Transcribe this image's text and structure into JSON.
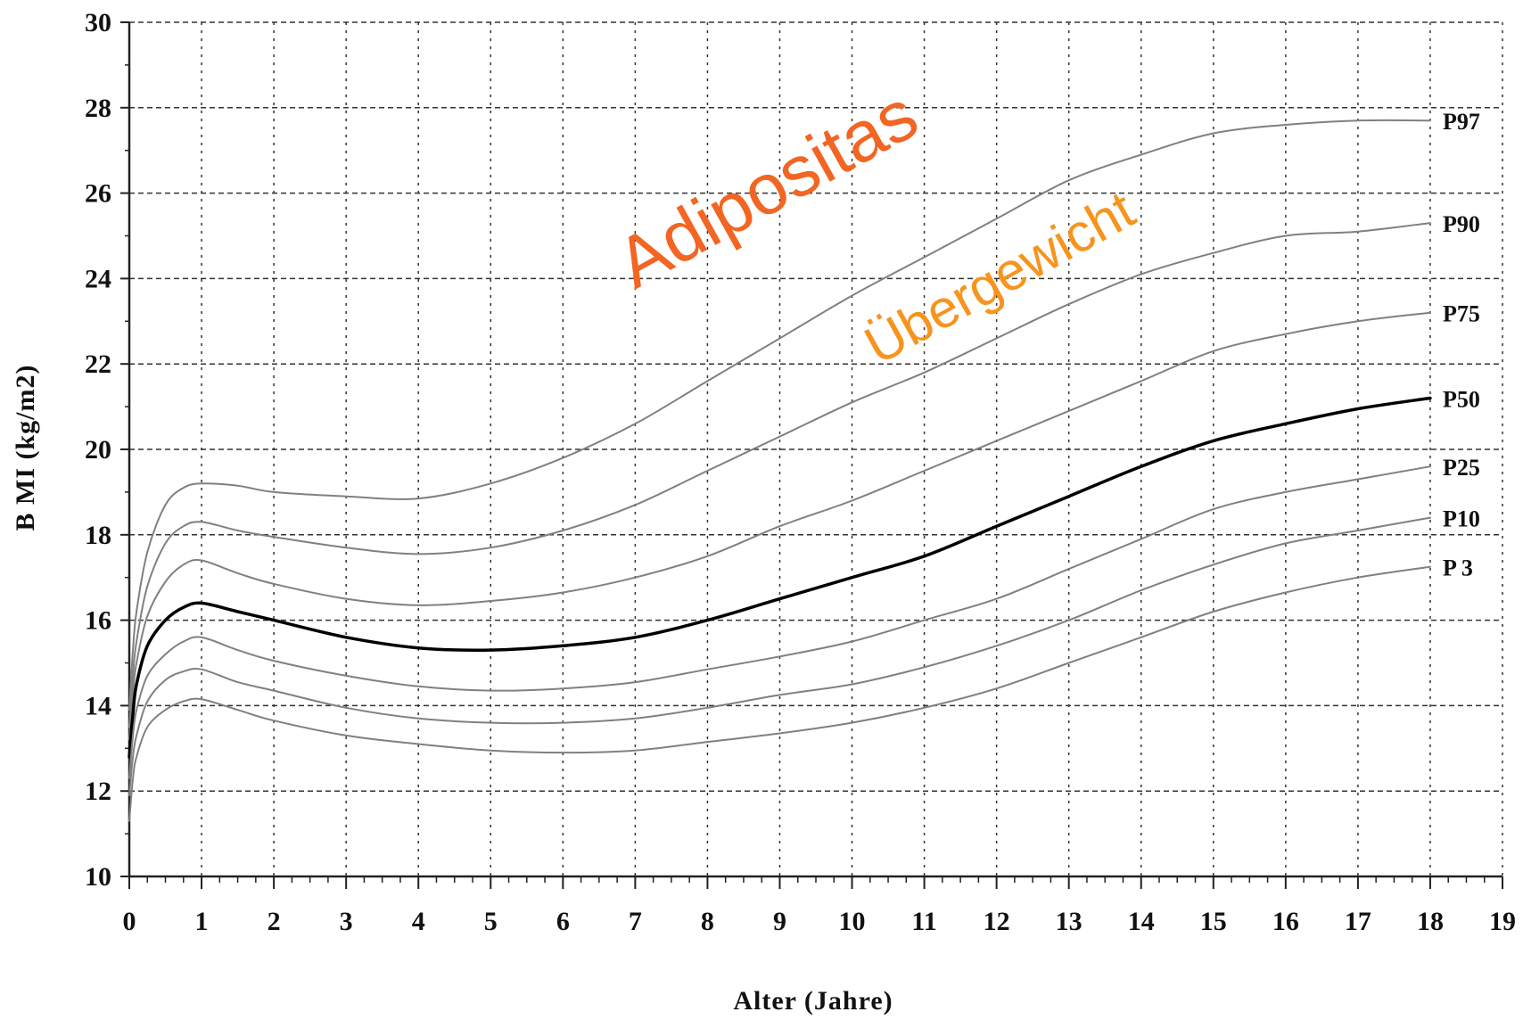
{
  "chart_data": {
    "type": "line",
    "title": "",
    "xlabel": "Alter (Jahre)",
    "ylabel": "B MI (kg/m2)",
    "xlim": [
      0,
      19
    ],
    "ylim": [
      10,
      30
    ],
    "x_ticks": [
      "0",
      "1",
      "2",
      "3",
      "4",
      "5",
      "6",
      "7",
      "8",
      "9",
      "10",
      "11",
      "12",
      "13",
      "14",
      "15",
      "16",
      "17",
      "18",
      "19"
    ],
    "y_ticks": [
      "10",
      "12",
      "14",
      "16",
      "18",
      "20",
      "22",
      "24",
      "26",
      "28",
      "30"
    ],
    "grid": true,
    "x": [
      0,
      0.05,
      0.1,
      0.25,
      0.5,
      0.75,
      1,
      1.5,
      2,
      3,
      4,
      5,
      6,
      7,
      8,
      9,
      10,
      11,
      12,
      13,
      14,
      15,
      16,
      17,
      18
    ],
    "series": [
      {
        "name": "P97",
        "color": "#808080",
        "width": 2,
        "values": [
          13.9,
          15.3,
          16.2,
          17.6,
          18.7,
          19.1,
          19.2,
          19.15,
          19.0,
          18.9,
          18.85,
          19.2,
          19.8,
          20.6,
          21.6,
          22.6,
          23.6,
          24.5,
          25.4,
          26.3,
          26.9,
          27.4,
          27.6,
          27.7,
          27.7
        ]
      },
      {
        "name": "P90",
        "color": "#808080",
        "width": 2,
        "values": [
          13.5,
          14.7,
          15.5,
          16.8,
          17.8,
          18.2,
          18.3,
          18.1,
          17.95,
          17.7,
          17.55,
          17.7,
          18.1,
          18.7,
          19.5,
          20.3,
          21.1,
          21.8,
          22.6,
          23.4,
          24.1,
          24.6,
          25.0,
          25.1,
          25.3
        ]
      },
      {
        "name": "P75",
        "color": "#808080",
        "width": 2,
        "values": [
          13.2,
          14.3,
          15.0,
          16.1,
          16.9,
          17.3,
          17.4,
          17.1,
          16.85,
          16.5,
          16.35,
          16.45,
          16.65,
          17.0,
          17.5,
          18.2,
          18.8,
          19.5,
          20.2,
          20.9,
          21.6,
          22.3,
          22.7,
          23.0,
          23.2
        ]
      },
      {
        "name": "P50",
        "color": "#000000",
        "width": 3.5,
        "values": [
          12.8,
          13.8,
          14.5,
          15.4,
          16.0,
          16.3,
          16.4,
          16.2,
          16.0,
          15.6,
          15.35,
          15.3,
          15.4,
          15.6,
          16.0,
          16.5,
          17.0,
          17.5,
          18.2,
          18.9,
          19.6,
          20.2,
          20.6,
          20.95,
          21.2
        ]
      },
      {
        "name": "P25",
        "color": "#808080",
        "width": 2,
        "values": [
          12.3,
          13.3,
          13.9,
          14.7,
          15.2,
          15.5,
          15.6,
          15.3,
          15.05,
          14.7,
          14.45,
          14.35,
          14.4,
          14.55,
          14.85,
          15.15,
          15.5,
          16.0,
          16.5,
          17.2,
          17.9,
          18.6,
          19.0,
          19.3,
          19.6
        ]
      },
      {
        "name": "P10",
        "color": "#808080",
        "width": 2,
        "values": [
          11.9,
          12.8,
          13.3,
          14.1,
          14.6,
          14.8,
          14.85,
          14.55,
          14.35,
          13.95,
          13.7,
          13.6,
          13.6,
          13.7,
          13.95,
          14.25,
          14.5,
          14.9,
          15.4,
          16.0,
          16.7,
          17.3,
          17.8,
          18.1,
          18.4
        ]
      },
      {
        "name": "P 3",
        "color": "#808080",
        "width": 2,
        "values": [
          11.3,
          12.3,
          12.8,
          13.5,
          13.9,
          14.1,
          14.15,
          13.9,
          13.65,
          13.3,
          13.1,
          12.95,
          12.9,
          12.95,
          13.15,
          13.35,
          13.6,
          13.95,
          14.4,
          15.0,
          15.6,
          16.2,
          16.65,
          17.0,
          17.25
        ]
      }
    ],
    "annotations": [
      {
        "text": "Adipositas",
        "color": "#f26522"
      },
      {
        "text": "Übergewicht",
        "color": "#f7941d"
      }
    ]
  }
}
